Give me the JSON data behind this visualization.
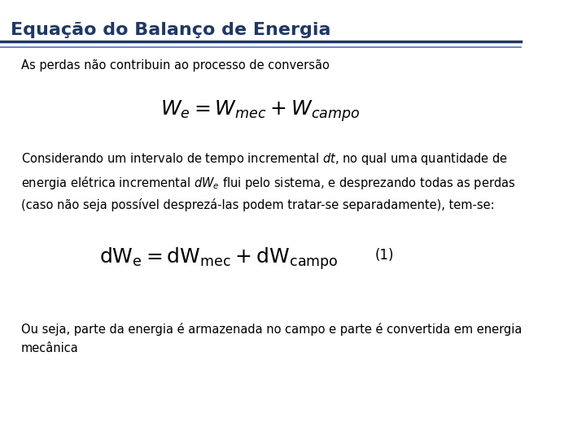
{
  "title": "Equação do Balanço de Energia",
  "title_color": "#1F3864",
  "title_fontsize": 16,
  "line_color": "#1F3864",
  "line2_color": "#4472C4",
  "bg_color": "#FFFFFF",
  "text_color": "#000000",
  "subtitle": "As perdas não contribuin ao processo de conversão",
  "subtitle_fontsize": 10.5,
  "eq1_latex": "$W_e = W_{mec} + W_{campo}$",
  "eq1_fontsize": 18,
  "paragraph": "Considerando um intervalo de tempo incremental $dt$, no qual uma quantidade de\nenergia elétrica incremental $dW_e$ flui pelo sistema, e desprezando todas as perdas\n(caso não seja possível desprezá-las podem tratar-se separadamente), tem-se:",
  "paragraph_fontsize": 10.5,
  "eq2_latex": "$\\mathrm{dW_e = dW_{mec} + dW_{campo}}$",
  "eq2_fontsize": 18,
  "eq2_label": "(1)",
  "eq2_label_fontsize": 12,
  "footer": "Ou seja, parte da energia é armazenada no campo e parte é convertida em energia\nmecânica",
  "footer_fontsize": 10.5
}
